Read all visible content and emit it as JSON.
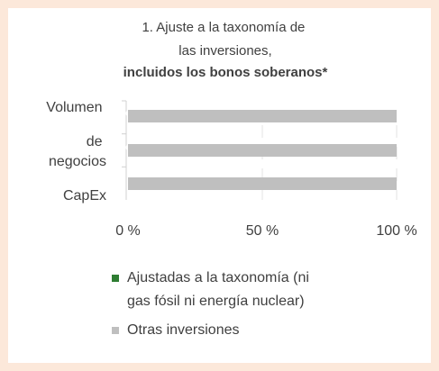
{
  "chart_data": {
    "type": "bar",
    "orientation": "horizontal",
    "stacked": true,
    "title": "1. Ajuste a la taxonomía de las inversiones,",
    "subtitle": "incluidos los bonos soberanos*",
    "categories": [
      "Volumen de negocios",
      "CapEx",
      null
    ],
    "series": [
      {
        "name": "Ajustadas a la taxonomía (ni gas fósil ni energía nuclear)",
        "color": "#2e7d32",
        "values": [
          0,
          0,
          0
        ],
        "value_labels": [
          "%",
          "%",
          null
        ]
      },
      {
        "name": "Otras inversiones",
        "color": "#bfbfbf",
        "values": [
          100,
          100,
          100
        ]
      }
    ],
    "xlim": [
      0,
      100
    ],
    "xticks": [
      {
        "value": 0,
        "label": "0 %"
      },
      {
        "value": 50,
        "label": "50 %"
      },
      {
        "value": 100,
        "label": "100 %"
      }
    ],
    "grid": true,
    "legend": "bottom"
  }
}
